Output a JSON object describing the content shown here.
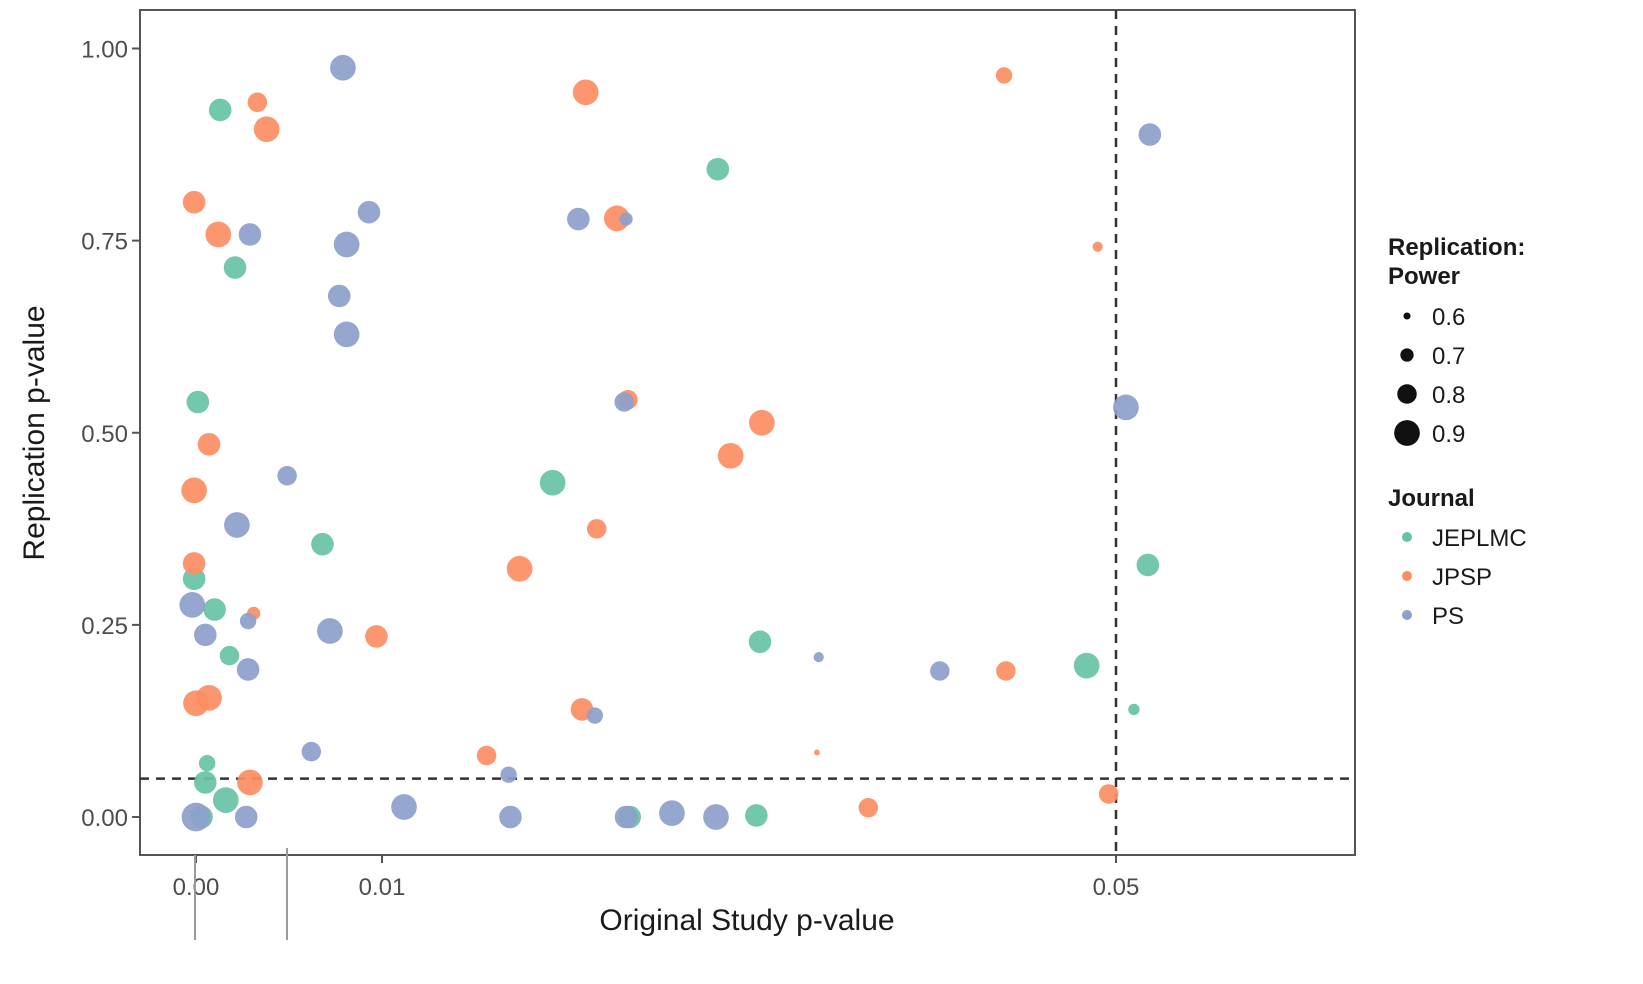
{
  "chart_data": {
    "type": "scatter",
    "xlabel": "Original Study p-value",
    "ylabel": "Replication p-value",
    "xlim": [
      -0.003,
      0.062
    ],
    "ylim": [
      -0.05,
      1.05
    ],
    "x_ticks": [
      {
        "value": 0.0,
        "label": "0.00"
      },
      {
        "value": 0.01,
        "label": "0.01"
      },
      {
        "value": 0.05,
        "label": "0.05"
      }
    ],
    "y_ticks": [
      {
        "value": 0.0,
        "label": "0.00"
      },
      {
        "value": 0.25,
        "label": "0.25"
      },
      {
        "value": 0.5,
        "label": "0.50"
      },
      {
        "value": 0.75,
        "label": "0.75"
      },
      {
        "value": 1.0,
        "label": "1.00"
      }
    ],
    "reference_lines": {
      "x": 0.05,
      "y": 0.05,
      "style": "dashed"
    },
    "grid": false,
    "legend": {
      "position": "right",
      "size_title": "Replication:\nPower",
      "size_title_lines": [
        "Replication:",
        "Power"
      ],
      "sizes": [
        {
          "label": "0.6",
          "value": 0.6
        },
        {
          "label": "0.7",
          "value": 0.7
        },
        {
          "label": "0.8",
          "value": 0.8
        },
        {
          "label": "0.9",
          "value": 0.9
        }
      ],
      "color_title": "Journal",
      "journals": [
        {
          "label": "JEPLMC",
          "color": "#66c2a5"
        },
        {
          "label": "JPSP",
          "color": "#fc8d62"
        },
        {
          "label": "PS",
          "color": "#8da0cb"
        }
      ]
    },
    "series": [
      {
        "name": "JEPLMC",
        "color": "#66c2a5",
        "points": [
          {
            "x": 0.0013,
            "y": 0.92,
            "power": 0.85
          },
          {
            "x": 0.0021,
            "y": 0.715,
            "power": 0.85
          },
          {
            "x": 0.0001,
            "y": 0.54,
            "power": 0.85
          },
          {
            "x": 0.0068,
            "y": 0.355,
            "power": 0.85
          },
          {
            "x": -0.0001,
            "y": 0.31,
            "power": 0.85
          },
          {
            "x": 0.001,
            "y": 0.27,
            "power": 0.85
          },
          {
            "x": 0.0018,
            "y": 0.21,
            "power": 0.8
          },
          {
            "x": 0.0006,
            "y": 0.07,
            "power": 0.75
          },
          {
            "x": 0.0005,
            "y": 0.045,
            "power": 0.85
          },
          {
            "x": 0.0016,
            "y": 0.022,
            "power": 0.9
          },
          {
            "x": 0.0003,
            "y": 0.0,
            "power": 0.85
          },
          {
            "x": 0.0193,
            "y": 0.435,
            "power": 0.9
          },
          {
            "x": 0.0283,
            "y": 0.843,
            "power": 0.85
          },
          {
            "x": 0.0306,
            "y": 0.228,
            "power": 0.85
          },
          {
            "x": 0.0304,
            "y": 0.002,
            "power": 0.85
          },
          {
            "x": 0.0235,
            "y": 0.0,
            "power": 0.85
          },
          {
            "x": 0.0484,
            "y": 0.197,
            "power": 0.9
          },
          {
            "x": 0.0509,
            "y": 0.14,
            "power": 0.67
          },
          {
            "x": 0.0516,
            "y": 0.328,
            "power": 0.85
          }
        ]
      },
      {
        "name": "JPSP",
        "color": "#fc8d62",
        "points": [
          {
            "x": 0.0033,
            "y": 0.93,
            "power": 0.8
          },
          {
            "x": 0.0038,
            "y": 0.895,
            "power": 0.9
          },
          {
            "x": -0.0001,
            "y": 0.8,
            "power": 0.85
          },
          {
            "x": 0.0012,
            "y": 0.758,
            "power": 0.9
          },
          {
            "x": 0.0007,
            "y": 0.485,
            "power": 0.85
          },
          {
            "x": -0.0001,
            "y": 0.425,
            "power": 0.9
          },
          {
            "x": -0.0001,
            "y": 0.33,
            "power": 0.85
          },
          {
            "x": 0.0031,
            "y": 0.265,
            "power": 0.7
          },
          {
            "x": 0.0097,
            "y": 0.235,
            "power": 0.85
          },
          {
            "x": 0.0007,
            "y": 0.155,
            "power": 0.9
          },
          {
            "x": 0.0,
            "y": 0.148,
            "power": 0.9
          },
          {
            "x": 0.0029,
            "y": 0.045,
            "power": 0.9
          },
          {
            "x": 0.0157,
            "y": 0.08,
            "power": 0.8
          },
          {
            "x": 0.0175,
            "y": 0.323,
            "power": 0.9
          },
          {
            "x": 0.0211,
            "y": 0.943,
            "power": 0.9
          },
          {
            "x": 0.0228,
            "y": 0.779,
            "power": 0.9
          },
          {
            "x": 0.0217,
            "y": 0.375,
            "power": 0.8
          },
          {
            "x": 0.0234,
            "y": 0.543,
            "power": 0.8
          },
          {
            "x": 0.0209,
            "y": 0.14,
            "power": 0.85
          },
          {
            "x": 0.029,
            "y": 0.47,
            "power": 0.9
          },
          {
            "x": 0.0307,
            "y": 0.513,
            "power": 0.9
          },
          {
            "x": 0.0337,
            "y": 0.084,
            "power": 0.58
          },
          {
            "x": 0.0365,
            "y": 0.012,
            "power": 0.8
          },
          {
            "x": 0.0439,
            "y": 0.965,
            "power": 0.75
          },
          {
            "x": 0.044,
            "y": 0.19,
            "power": 0.8
          },
          {
            "x": 0.049,
            "y": 0.742,
            "power": 0.65
          },
          {
            "x": 0.0496,
            "y": 0.03,
            "power": 0.8
          }
        ]
      },
      {
        "name": "PS",
        "color": "#8da0cb",
        "points": [
          {
            "x": 0.0079,
            "y": 0.975,
            "power": 0.9
          },
          {
            "x": 0.0093,
            "y": 0.787,
            "power": 0.85
          },
          {
            "x": 0.0029,
            "y": 0.758,
            "power": 0.85
          },
          {
            "x": 0.0081,
            "y": 0.745,
            "power": 0.9
          },
          {
            "x": 0.0077,
            "y": 0.678,
            "power": 0.85
          },
          {
            "x": 0.0081,
            "y": 0.628,
            "power": 0.9
          },
          {
            "x": 0.0049,
            "y": 0.444,
            "power": 0.8
          },
          {
            "x": 0.0022,
            "y": 0.38,
            "power": 0.9
          },
          {
            "x": -0.0002,
            "y": 0.276,
            "power": 0.9
          },
          {
            "x": 0.0072,
            "y": 0.242,
            "power": 0.9
          },
          {
            "x": 0.0028,
            "y": 0.255,
            "power": 0.75
          },
          {
            "x": 0.0005,
            "y": 0.237,
            "power": 0.85
          },
          {
            "x": 0.0028,
            "y": 0.192,
            "power": 0.85
          },
          {
            "x": 0.0062,
            "y": 0.085,
            "power": 0.8
          },
          {
            "x": 0.0112,
            "y": 0.013,
            "power": 0.9
          },
          {
            "x": 0.017,
            "y": 0.0,
            "power": 0.85
          },
          {
            "x": 0.0027,
            "y": 0.0,
            "power": 0.85
          },
          {
            "x": 0.0,
            "y": 0.0,
            "power": 0.95
          },
          {
            "x": 0.0169,
            "y": 0.055,
            "power": 0.75
          },
          {
            "x": 0.0207,
            "y": 0.778,
            "power": 0.85
          },
          {
            "x": 0.0233,
            "y": 0.778,
            "power": 0.7
          },
          {
            "x": 0.0232,
            "y": 0.54,
            "power": 0.8
          },
          {
            "x": 0.0216,
            "y": 0.132,
            "power": 0.75
          },
          {
            "x": 0.0233,
            "y": 0.0,
            "power": 0.85
          },
          {
            "x": 0.0258,
            "y": 0.005,
            "power": 0.9
          },
          {
            "x": 0.0282,
            "y": 0.0,
            "power": 0.9
          },
          {
            "x": 0.0338,
            "y": 0.208,
            "power": 0.65
          },
          {
            "x": 0.0404,
            "y": 0.19,
            "power": 0.8
          },
          {
            "x": 0.0505,
            "y": 0.533,
            "power": 0.9
          },
          {
            "x": 0.0517,
            "y": 0.888,
            "power": 0.85
          }
        ]
      }
    ]
  }
}
